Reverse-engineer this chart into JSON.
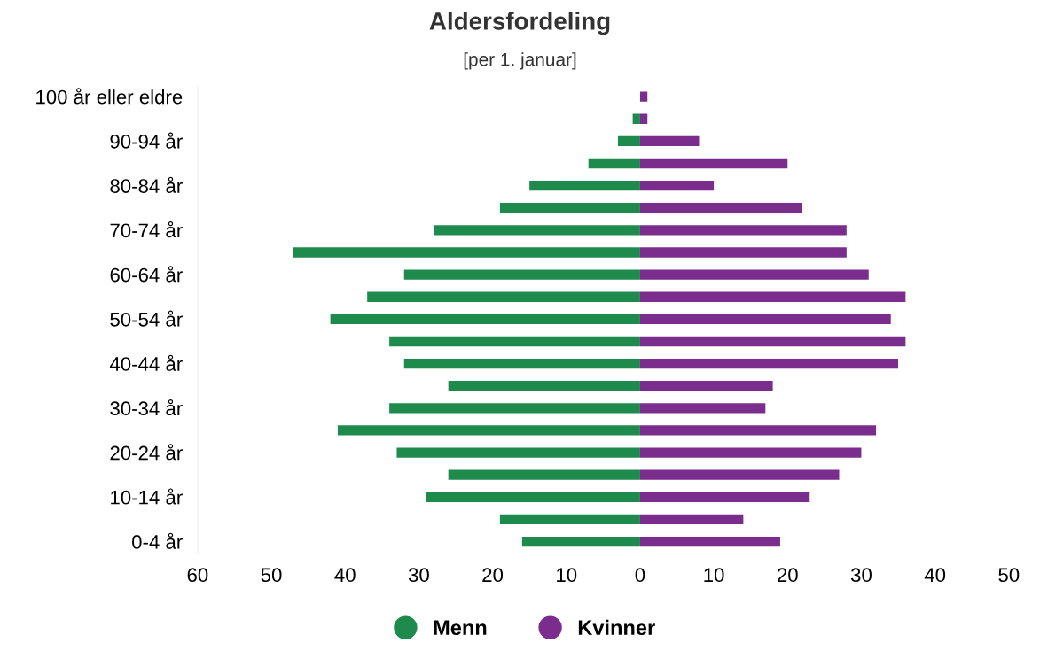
{
  "chart_data": {
    "type": "bar",
    "orientation": "horizontal",
    "title": "Aldersfordeling",
    "subtitle": "[per 1. januar]",
    "categories": [
      "100 år eller eldre",
      null,
      "90-94 år",
      null,
      "80-84 år",
      null,
      "70-74 år",
      null,
      "60-64 år",
      null,
      "50-54 år",
      null,
      "40-44 år",
      null,
      "30-34 år",
      null,
      "20-24 år",
      null,
      "10-14 år",
      null,
      "0-4 år"
    ],
    "series": [
      {
        "name": "Menn",
        "color": "#1e8a4c",
        "values": [
          null,
          -1,
          -3,
          -7,
          -15,
          -19,
          -28,
          -47,
          -32,
          -37,
          -42,
          -34,
          -32,
          -26,
          -34,
          -41,
          -33,
          -26,
          -29,
          -19,
          -16
        ]
      },
      {
        "name": "Kvinner",
        "color": "#7b2d8e",
        "values": [
          1,
          1,
          8,
          20,
          10,
          22,
          28,
          28,
          31,
          36,
          34,
          36,
          35,
          18,
          17,
          32,
          30,
          27,
          23,
          14,
          19
        ]
      }
    ],
    "xlim": [
      -60,
      50
    ],
    "xticks": [
      {
        "value": -60,
        "label": "60"
      },
      {
        "value": -50,
        "label": "50"
      },
      {
        "value": -40,
        "label": "40"
      },
      {
        "value": -30,
        "label": "30"
      },
      {
        "value": -20,
        "label": "20"
      },
      {
        "value": -10,
        "label": "10"
      },
      0,
      10,
      20,
      30,
      40,
      50
    ],
    "stacked": true,
    "grid": false,
    "legend": "bottom"
  }
}
